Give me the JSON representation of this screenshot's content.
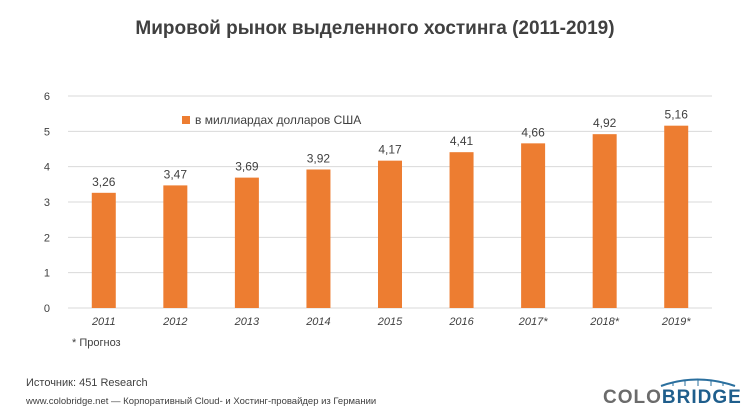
{
  "title": "Мировой рынок выделенного хостинга (2011-2019)",
  "footnote": "* Прогноз",
  "source": "Источник:  451 Research",
  "site": "www.colobridge.net — Корпоративный Cloud- и Хостинг-провайдер из Германии",
  "logo": {
    "part1": "COLO",
    "part2": "BRIDGE"
  },
  "colors": {
    "bar": "#ed7d31",
    "grid": "#d9d9d9",
    "text": "#404040"
  },
  "chart_data": {
    "type": "bar",
    "title": "Мировой рынок выделенного хостинга (2011-2019)",
    "categories": [
      "2011",
      "2012",
      "2013",
      "2014",
      "2015",
      "2016",
      "2017*",
      "2018*",
      "2019*"
    ],
    "series": [
      {
        "name": "в миллиардах долларов США",
        "values": [
          3.26,
          3.47,
          3.69,
          3.92,
          4.17,
          4.41,
          4.66,
          4.92,
          5.16
        ],
        "labels": [
          "3,26",
          "3,47",
          "3,69",
          "3,92",
          "4,17",
          "4,41",
          "4,66",
          "4,92",
          "5,16"
        ]
      }
    ],
    "ylim": [
      0,
      6
    ],
    "yticks": [
      0,
      1,
      2,
      3,
      4,
      5,
      6
    ],
    "grid": true,
    "legend": "top-left"
  }
}
